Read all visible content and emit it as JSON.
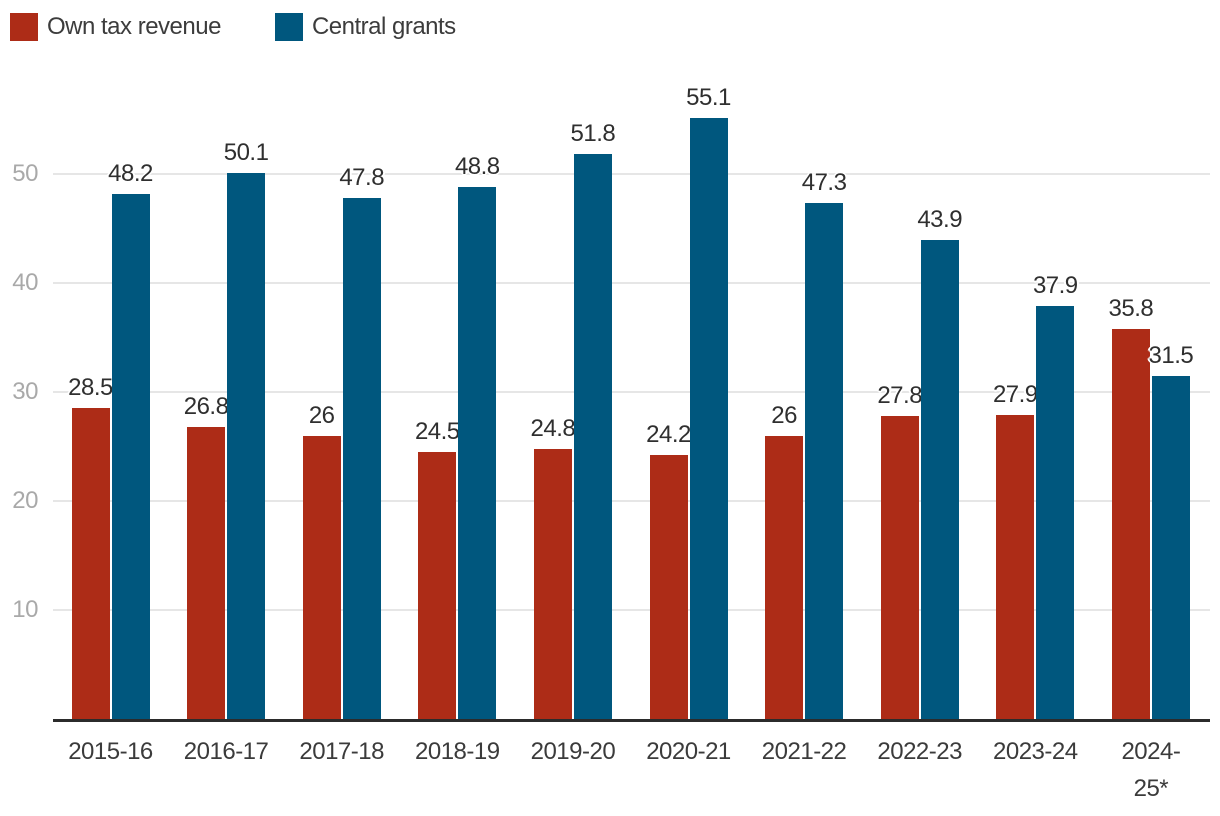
{
  "legend": {
    "items": [
      {
        "label": "Own tax revenue",
        "color": "#ad2c17"
      },
      {
        "label": "Central grants",
        "color": "#00577e"
      }
    ]
  },
  "colors": {
    "own_tax_revenue": "#ad2c17",
    "central_grants": "#00577e",
    "gridline": "#e6e6e6",
    "axis_line": "#2b2b2b",
    "ytick_label": "#a9a9a9",
    "xaxis_label": "#3b3b3b",
    "value_label": "#2f2f2f"
  },
  "chart_data": {
    "type": "bar",
    "categories": [
      "2015-16",
      "2016-17",
      "2017-18",
      "2018-19",
      "2019-20",
      "2020-21",
      "2021-22",
      "2022-23",
      "2023-24",
      "2024-25*"
    ],
    "series": [
      {
        "name": "Own tax revenue",
        "color": "#ad2c17",
        "values": [
          28.5,
          26.8,
          26,
          24.5,
          24.8,
          24.2,
          26,
          27.8,
          27.9,
          35.8
        ],
        "labels": [
          "28.5",
          "26.8",
          "26",
          "24.5",
          "24.8",
          "24.2",
          "26",
          "27.8",
          "27.9",
          "35.8"
        ]
      },
      {
        "name": "Central grants",
        "color": "#00577e",
        "values": [
          48.2,
          50.1,
          47.8,
          48.8,
          51.8,
          55.1,
          47.3,
          43.9,
          37.9,
          31.5
        ],
        "labels": [
          "48.2",
          "50.1",
          "47.8",
          "48.8",
          "51.8",
          "55.1",
          "47.3",
          "43.9",
          "37.9",
          "31.5"
        ]
      }
    ],
    "yticks": [
      10,
      20,
      30,
      40,
      50
    ],
    "ytick_labels": [
      "10",
      "20",
      "30",
      "40",
      "50"
    ],
    "ylim": [
      0,
      60
    ],
    "grid": true,
    "value_labels_shown": true,
    "legend_position": "top-left",
    "title": "",
    "xlabel": "",
    "ylabel": ""
  }
}
